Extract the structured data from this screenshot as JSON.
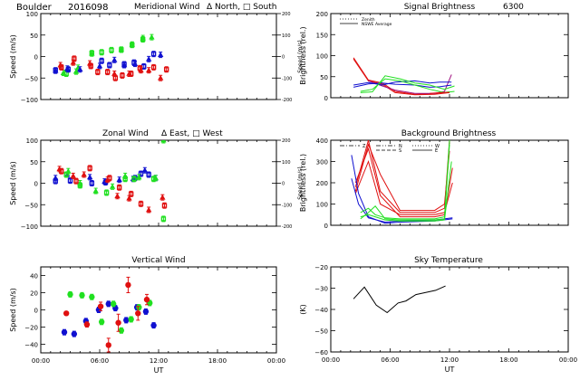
{
  "header": {
    "site": "Boulder",
    "date": "2016098"
  },
  "colors": {
    "red": "#e01010",
    "green": "#20e020",
    "blue": "#1010d0",
    "purple": "#a01080",
    "axis": "#000000"
  },
  "chart_data": [
    {
      "id": "meridional",
      "type": "scatter",
      "title": "Meridional Wind",
      "legend_text": "Δ North, □ South",
      "xlabel": "",
      "ylabel": "Speed (m/s)",
      "y2label": "Speed (m/s)",
      "xlim": [
        0,
        24
      ],
      "ylim": [
        -100,
        100
      ],
      "y2lim": [
        -200,
        200
      ],
      "yticks": [
        -100,
        -50,
        0,
        50,
        100
      ],
      "y2ticks": [
        -200,
        -100,
        0,
        100,
        200
      ],
      "y2ticklabels": [
        "-200",
        "-100",
        "0",
        "100",
        "200"
      ],
      "series": [
        {
          "name": "green-north",
          "color": "green",
          "marker": "triangle",
          "x": [
            2.3,
            3.6
          ],
          "y": [
            -38,
            -35
          ]
        },
        {
          "name": "green-south",
          "color": "green",
          "marker": "square",
          "x": [
            2.6,
            5.2,
            6.2,
            7.2,
            8.2,
            9.3,
            10.4
          ],
          "y": [
            -40,
            8,
            10,
            15,
            16,
            27,
            40
          ]
        },
        {
          "name": "green-north-2",
          "color": "green",
          "marker": "triangle",
          "x": [
            3.8,
            5.2,
            8.2,
            9.3,
            10.4,
            11.3
          ],
          "y": [
            -26,
            7,
            16,
            28,
            43,
            45
          ]
        },
        {
          "name": "blue-north",
          "color": "blue",
          "marker": "triangle",
          "x": [
            1.5,
            2.7,
            4.0,
            6.0,
            7.5,
            8.5,
            9.6,
            11.0,
            12.2
          ],
          "y": [
            -33,
            -28,
            -30,
            -22,
            -8,
            -20,
            -17,
            -6,
            4
          ]
        },
        {
          "name": "blue-south",
          "color": "blue",
          "marker": "square",
          "x": [
            1.5,
            2.8,
            6.2,
            7.0,
            8.5,
            9.5,
            10.5,
            11.5
          ],
          "y": [
            -32,
            -30,
            -10,
            -20,
            -18,
            -14,
            -23,
            6
          ]
        },
        {
          "name": "red-north",
          "color": "red",
          "marker": "triangle",
          "x": [
            2.0,
            3.3,
            5.0,
            7.5,
            9.0,
            10.2,
            11.0,
            12.2
          ],
          "y": [
            -20,
            -14,
            -16,
            -40,
            -40,
            -32,
            -32,
            -50
          ]
        },
        {
          "name": "red-south",
          "color": "red",
          "marker": "square",
          "x": [
            2.1,
            3.4,
            5.1,
            5.8,
            6.8,
            7.6,
            8.3,
            9.2,
            10.1,
            11.5,
            12.8
          ],
          "y": [
            -25,
            -5,
            -22,
            -36,
            -36,
            -50,
            -44,
            -40,
            -27,
            -25,
            -30
          ]
        }
      ]
    },
    {
      "id": "zonal",
      "type": "scatter",
      "title": "Zonal Wind",
      "legend_text": "Δ East, □ West",
      "xlabel": "",
      "ylabel": "Speed (m/s)",
      "y2label": "Speed (m/s)",
      "xlim": [
        0,
        24
      ],
      "ylim": [
        -100,
        100
      ],
      "y2lim": [
        -200,
        200
      ],
      "yticks": [
        -100,
        -50,
        0,
        50,
        100
      ],
      "y2ticks": [
        -200,
        -100,
        0,
        100,
        200
      ],
      "y2ticklabels": [
        "-200",
        "-100",
        "0",
        "100",
        "200"
      ],
      "series": [
        {
          "name": "blue-east",
          "color": "blue",
          "marker": "triangle",
          "x": [
            1.5,
            2.7,
            5.0,
            6.5,
            8.0,
            9.4,
            10.6,
            11.7
          ],
          "y": [
            12,
            20,
            14,
            4,
            8,
            10,
            30,
            12
          ]
        },
        {
          "name": "blue-west",
          "color": "blue",
          "marker": "square",
          "x": [
            1.5,
            3.0,
            5.2,
            6.6,
            9.6,
            10.2,
            11.0
          ],
          "y": [
            5,
            6,
            0,
            2,
            12,
            22,
            20
          ]
        },
        {
          "name": "green-east",
          "color": "green",
          "marker": "triangle",
          "x": [
            2.8,
            4.0,
            5.6,
            7.3,
            8.6,
            10.0,
            11.7,
            12.5
          ],
          "y": [
            28,
            0,
            -18,
            -8,
            17,
            14,
            12,
            100
          ]
        },
        {
          "name": "green-west",
          "color": "green",
          "marker": "square",
          "x": [
            2.6,
            4.0,
            6.7,
            8.6,
            9.5,
            11.5,
            12.5
          ],
          "y": [
            20,
            -5,
            -22,
            10,
            10,
            10,
            -83
          ]
        },
        {
          "name": "red-east",
          "color": "red",
          "marker": "triangle",
          "x": [
            1.9,
            3.3,
            4.4,
            6.8,
            7.8,
            9.0,
            11.0,
            12.4
          ],
          "y": [
            33,
            17,
            20,
            8,
            -30,
            -35,
            -62,
            -33
          ]
        },
        {
          "name": "red-west",
          "color": "red",
          "marker": "square",
          "x": [
            2.1,
            3.6,
            5.0,
            7.0,
            8.0,
            9.2,
            10.2,
            12.6
          ],
          "y": [
            28,
            5,
            35,
            12,
            -10,
            -25,
            -48,
            -52
          ]
        }
      ]
    },
    {
      "id": "vertical",
      "type": "scatter",
      "title": "Vertical Wind",
      "xlabel": "UT",
      "ylabel": "Speed (m/s)",
      "xlim": [
        0,
        24
      ],
      "ylim": [
        -50,
        50
      ],
      "yticks": [
        -40,
        -20,
        0,
        20,
        40
      ],
      "xticklabels": [
        "00:00",
        "06:00",
        "12:00",
        "18:00",
        "00:00"
      ],
      "series": [
        {
          "name": "blue",
          "color": "blue",
          "marker": "dot",
          "x": [
            2.4,
            3.4,
            4.6,
            5.9,
            6.9,
            7.6,
            8.7,
            9.8,
            10.7,
            11.5
          ],
          "y": [
            -26,
            -28,
            -13,
            0,
            7,
            2,
            -12,
            3,
            -2,
            -18
          ]
        },
        {
          "name": "green",
          "color": "green",
          "marker": "dot",
          "x": [
            3.0,
            4.2,
            5.2,
            6.2,
            7.4,
            8.2,
            9.2,
            10.0,
            11.1
          ],
          "y": [
            18,
            17,
            15,
            -14,
            7,
            -24,
            -11,
            3,
            8
          ]
        },
        {
          "name": "red",
          "color": "red",
          "marker": "dot",
          "x": [
            2.6,
            4.7,
            6.1,
            6.9,
            7.9,
            8.9,
            9.9,
            10.8
          ],
          "y": [
            -4,
            -17,
            4,
            -41,
            -15,
            29,
            -4,
            12
          ],
          "err": [
            2,
            3,
            5,
            8,
            10,
            9,
            8,
            6
          ]
        }
      ]
    },
    {
      "id": "signal",
      "type": "line",
      "title": "Signal Brightness",
      "subtitle": "6300",
      "xlabel": "",
      "ylabel": "Brightness (rel.)",
      "xlim": [
        0,
        24
      ],
      "ylim": [
        0,
        200
      ],
      "yticks": [
        0,
        50,
        100,
        150,
        200
      ],
      "legend": [
        {
          "label": "Zenith",
          "style": "dotted"
        },
        {
          "label": "NSWE Average",
          "style": "solid"
        }
      ],
      "series": [
        {
          "name": "red-1",
          "color": "red",
          "x": [
            2.3,
            3.8,
            5.2,
            6.5,
            8.5,
            10.5,
            12.0
          ],
          "y": [
            95,
            42,
            35,
            15,
            8,
            10,
            14
          ]
        },
        {
          "name": "red-2",
          "color": "red",
          "x": [
            2.3,
            3.8,
            5.2,
            6.5,
            8.5,
            10.5,
            12.0
          ],
          "y": [
            92,
            40,
            32,
            12,
            7,
            8,
            12
          ]
        },
        {
          "name": "purple",
          "color": "purple",
          "x": [
            3.8,
            5.2,
            6.5,
            8.5,
            10.5,
            11.5,
            12.2
          ],
          "y": [
            40,
            28,
            18,
            10,
            10,
            15,
            55
          ]
        },
        {
          "name": "blue-1",
          "color": "blue",
          "x": [
            2.3,
            3.8,
            5.2,
            6.5,
            8.5,
            10.0,
            11.0,
            12.2
          ],
          "y": [
            30,
            36,
            30,
            37,
            40,
            35,
            37,
            37
          ]
        },
        {
          "name": "blue-2",
          "color": "blue",
          "x": [
            2.3,
            3.8,
            5.2,
            6.5,
            8.5,
            10.0,
            11.0,
            12.2
          ],
          "y": [
            25,
            33,
            35,
            32,
            30,
            25,
            26,
            30
          ]
        },
        {
          "name": "green-1",
          "color": "green",
          "x": [
            3.0,
            4.2,
            5.5,
            7.0,
            8.5,
            10.0,
            11.5,
            12.5
          ],
          "y": [
            12,
            14,
            52,
            45,
            35,
            30,
            20,
            28
          ]
        },
        {
          "name": "green-2",
          "color": "green",
          "x": [
            3.0,
            4.2,
            5.5,
            7.0,
            8.5,
            10.0,
            11.5,
            12.5
          ],
          "y": [
            15,
            20,
            45,
            40,
            30,
            20,
            12,
            15
          ]
        },
        {
          "name": "orange",
          "color": "red",
          "x": [
            10.0,
            11.0,
            12.0
          ],
          "y": [
            10,
            12,
            12
          ]
        }
      ]
    },
    {
      "id": "background",
      "type": "line",
      "title": "Background Brightness",
      "xlabel": "",
      "ylabel": "Brightness (rel.)",
      "xlim": [
        0,
        24
      ],
      "ylim": [
        0,
        400
      ],
      "yticks": [
        0,
        100,
        200,
        300,
        400
      ],
      "legend": [
        {
          "label": "Z",
          "style": "dashdot"
        },
        {
          "label": "N",
          "style": "dashdotdot"
        },
        {
          "label": "S",
          "style": "dashed"
        },
        {
          "label": "W",
          "style": "dotted"
        },
        {
          "label": "E",
          "style": "solid"
        }
      ],
      "series": [
        {
          "name": "red-1",
          "color": "red",
          "x": [
            2.5,
            3.8,
            5.0,
            7.0,
            10.5,
            11.5,
            12.0
          ],
          "y": [
            180,
            400,
            160,
            60,
            60,
            80,
            400
          ]
        },
        {
          "name": "red-2",
          "color": "red",
          "x": [
            2.5,
            3.8,
            5.0,
            7.0,
            10.5,
            11.5,
            12.0
          ],
          "y": [
            160,
            380,
            240,
            70,
            70,
            100,
            350
          ]
        },
        {
          "name": "red-3",
          "color": "red",
          "x": [
            2.5,
            3.8,
            5.0,
            7.0,
            10.5,
            11.5,
            12.3
          ],
          "y": [
            200,
            360,
            140,
            40,
            40,
            50,
            270
          ]
        },
        {
          "name": "red-4",
          "color": "red",
          "x": [
            2.5,
            3.8,
            5.0,
            7.0,
            10.5,
            11.5,
            12.3
          ],
          "y": [
            150,
            300,
            100,
            50,
            50,
            60,
            200
          ]
        },
        {
          "name": "blue-1",
          "color": "blue",
          "x": [
            2.1,
            2.8,
            3.8,
            5.5,
            7.0,
            10.5,
            12.3
          ],
          "y": [
            330,
            150,
            40,
            10,
            15,
            20,
            30
          ]
        },
        {
          "name": "blue-2",
          "color": "blue",
          "x": [
            2.1,
            2.8,
            3.8,
            5.5,
            7.0,
            10.5,
            12.3
          ],
          "y": [
            220,
            100,
            35,
            15,
            20,
            25,
            35
          ]
        },
        {
          "name": "green-1",
          "color": "green",
          "x": [
            3.0,
            3.8,
            4.5,
            5.5,
            7.0,
            10.5,
            11.5,
            12.0
          ],
          "y": [
            60,
            80,
            50,
            35,
            30,
            30,
            40,
            400
          ]
        },
        {
          "name": "green-2",
          "color": "green",
          "x": [
            3.0,
            3.8,
            4.5,
            5.5,
            7.0,
            10.5,
            11.5,
            12.0
          ],
          "y": [
            30,
            60,
            90,
            30,
            25,
            25,
            30,
            380
          ]
        },
        {
          "name": "green-3",
          "color": "green",
          "x": [
            3.0,
            3.8,
            4.5,
            5.5,
            7.0,
            10.5,
            11.5,
            12.2
          ],
          "y": [
            40,
            50,
            40,
            25,
            20,
            20,
            25,
            300
          ]
        }
      ]
    },
    {
      "id": "sky",
      "type": "line",
      "title": "Sky Temperature",
      "xlabel": "UT",
      "ylabel": "(K)",
      "xlim": [
        0,
        24
      ],
      "ylim": [
        -60,
        -20
      ],
      "yticks": [
        -60,
        -50,
        -40,
        -30,
        -20
      ],
      "xticklabels": [
        "00:00",
        "06:00",
        "12:00",
        "18:00",
        "00:00"
      ],
      "series": [
        {
          "name": "temperature",
          "color": "black",
          "x": [
            2.3,
            3.4,
            4.6,
            5.7,
            6.8,
            7.6,
            8.6,
            9.6,
            10.6,
            11.6
          ],
          "y": [
            -35,
            -29.5,
            -38,
            -41.5,
            -37,
            -36,
            -33,
            -32,
            -31,
            -29
          ]
        }
      ]
    }
  ]
}
